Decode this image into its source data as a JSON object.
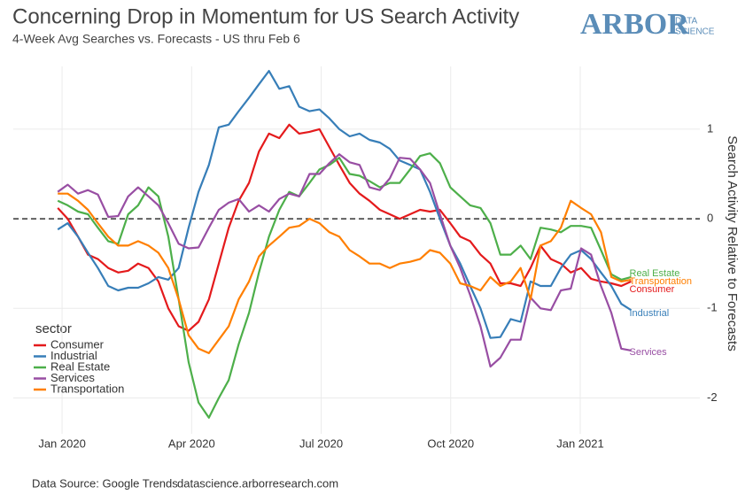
{
  "chart_data": {
    "type": "line",
    "title": "Concerning Drop in Momentum for US Search Activity",
    "subtitle": "4-Week Avg Searches vs. Forecasts - US thru Feb 6",
    "y_label": "Search Activity Relative to Forecasts",
    "legend_title": "sector",
    "legend": "bottom-left",
    "grid": true,
    "reference_line": 0,
    "source": "Data Source: Google Trends",
    "website": "datascience.arborresearch.com",
    "logo": {
      "name": "ARBOR",
      "sub": [
        "DATA",
        "SCIENCE"
      ]
    },
    "xlim": [
      -1.13,
      14.77
    ],
    "xticks": [
      {
        "value": 0,
        "label": "Jan 2020"
      },
      {
        "value": 3,
        "label": "Apr 2020"
      },
      {
        "value": 6,
        "label": "Jul 2020"
      },
      {
        "value": 9,
        "label": "Oct 2020"
      },
      {
        "value": 12,
        "label": "Jan 2021"
      }
    ],
    "ylim": [
      -2.4,
      1.7
    ],
    "yticks": [
      -2,
      -1,
      0,
      1
    ],
    "x": [
      -0.1,
      0.13,
      0.37,
      0.6,
      0.83,
      1.07,
      1.3,
      1.53,
      1.76,
      2.0,
      2.23,
      2.46,
      2.7,
      2.93,
      3.16,
      3.4,
      3.63,
      3.86,
      4.09,
      4.33,
      4.56,
      4.79,
      5.03,
      5.26,
      5.49,
      5.73,
      5.96,
      6.19,
      6.42,
      6.66,
      6.89,
      7.12,
      7.36,
      7.59,
      7.82,
      8.06,
      8.29,
      8.52,
      8.75,
      8.99,
      9.22,
      9.45,
      9.69,
      9.92,
      10.15,
      10.39,
      10.62,
      10.85,
      11.08,
      11.32,
      11.55,
      11.78,
      12.02,
      12.25,
      12.48,
      12.72,
      12.95,
      13.18
    ],
    "series": [
      {
        "name": "Consumer",
        "color": "#e41a1c",
        "values": [
          0.12,
          0.0,
          -0.2,
          -0.4,
          -0.45,
          -0.55,
          -0.6,
          -0.58,
          -0.5,
          -0.55,
          -0.7,
          -1.0,
          -1.2,
          -1.25,
          -1.15,
          -0.9,
          -0.5,
          -0.1,
          0.2,
          0.4,
          0.75,
          0.95,
          0.9,
          1.05,
          0.95,
          0.97,
          1.0,
          0.8,
          0.6,
          0.4,
          0.28,
          0.2,
          0.1,
          0.05,
          0.0,
          0.05,
          0.1,
          0.08,
          0.1,
          -0.05,
          -0.2,
          -0.25,
          -0.4,
          -0.5,
          -0.72,
          -0.72,
          -0.75,
          -0.55,
          -0.3,
          -0.45,
          -0.5,
          -0.6,
          -0.55,
          -0.67,
          -0.7,
          -0.72,
          -0.75,
          -0.7
        ]
      },
      {
        "name": "Industrial",
        "color": "#377eb8",
        "values": [
          -0.12,
          -0.05,
          -0.2,
          -0.38,
          -0.55,
          -0.75,
          -0.8,
          -0.77,
          -0.77,
          -0.72,
          -0.65,
          -0.68,
          -0.55,
          -0.1,
          0.3,
          0.6,
          1.02,
          1.05,
          1.2,
          1.35,
          1.5,
          1.65,
          1.45,
          1.48,
          1.25,
          1.2,
          1.22,
          1.12,
          1.0,
          0.92,
          0.95,
          0.88,
          0.85,
          0.78,
          0.65,
          0.6,
          0.55,
          0.3,
          0.0,
          -0.3,
          -0.5,
          -0.75,
          -1.0,
          -1.33,
          -1.32,
          -1.12,
          -1.15,
          -0.7,
          -0.75,
          -0.75,
          -0.55,
          -0.4,
          -0.35,
          -0.45,
          -0.6,
          -0.75,
          -0.95,
          -1.02
        ]
      },
      {
        "name": "Real Estate",
        "color": "#4daf4a",
        "values": [
          0.2,
          0.15,
          0.08,
          0.05,
          -0.1,
          -0.25,
          -0.28,
          0.05,
          0.15,
          0.35,
          0.25,
          -0.2,
          -0.9,
          -1.6,
          -2.05,
          -2.22,
          -2.0,
          -1.8,
          -1.4,
          -1.05,
          -0.6,
          -0.2,
          0.1,
          0.3,
          0.25,
          0.4,
          0.55,
          0.6,
          0.68,
          0.5,
          0.48,
          0.42,
          0.35,
          0.4,
          0.4,
          0.55,
          0.7,
          0.73,
          0.62,
          0.35,
          0.25,
          0.15,
          0.12,
          -0.05,
          -0.4,
          -0.4,
          -0.3,
          -0.45,
          -0.1,
          -0.12,
          -0.15,
          -0.08,
          -0.08,
          -0.1,
          -0.35,
          -0.62,
          -0.68,
          -0.65
        ]
      },
      {
        "name": "Services",
        "color": "#984ea3",
        "values": [
          0.3,
          0.38,
          0.28,
          0.32,
          0.27,
          0.02,
          0.03,
          0.25,
          0.35,
          0.25,
          0.15,
          -0.05,
          -0.28,
          -0.33,
          -0.32,
          -0.1,
          0.1,
          0.18,
          0.22,
          0.08,
          0.15,
          0.08,
          0.22,
          0.28,
          0.25,
          0.5,
          0.5,
          0.62,
          0.72,
          0.63,
          0.6,
          0.35,
          0.32,
          0.45,
          0.68,
          0.67,
          0.55,
          0.4,
          0.05,
          -0.3,
          -0.55,
          -0.85,
          -1.2,
          -1.65,
          -1.55,
          -1.35,
          -1.35,
          -0.88,
          -1.0,
          -1.02,
          -0.8,
          -0.78,
          -0.33,
          -0.4,
          -0.75,
          -1.05,
          -1.45,
          -1.47
        ]
      },
      {
        "name": "Transportation",
        "color": "#ff7f00",
        "values": [
          0.28,
          0.28,
          0.2,
          0.1,
          -0.05,
          -0.2,
          -0.3,
          -0.3,
          -0.25,
          -0.3,
          -0.38,
          -0.55,
          -0.9,
          -1.3,
          -1.45,
          -1.5,
          -1.35,
          -1.2,
          -0.9,
          -0.7,
          -0.42,
          -0.3,
          -0.2,
          -0.1,
          -0.08,
          0.0,
          -0.05,
          -0.15,
          -0.2,
          -0.35,
          -0.42,
          -0.5,
          -0.5,
          -0.55,
          -0.5,
          -0.48,
          -0.45,
          -0.35,
          -0.38,
          -0.5,
          -0.72,
          -0.75,
          -0.8,
          -0.65,
          -0.75,
          -0.7,
          -0.55,
          -0.9,
          -0.3,
          -0.25,
          -0.1,
          0.2,
          0.12,
          0.05,
          -0.15,
          -0.65,
          -0.7,
          -0.68
        ]
      }
    ]
  }
}
